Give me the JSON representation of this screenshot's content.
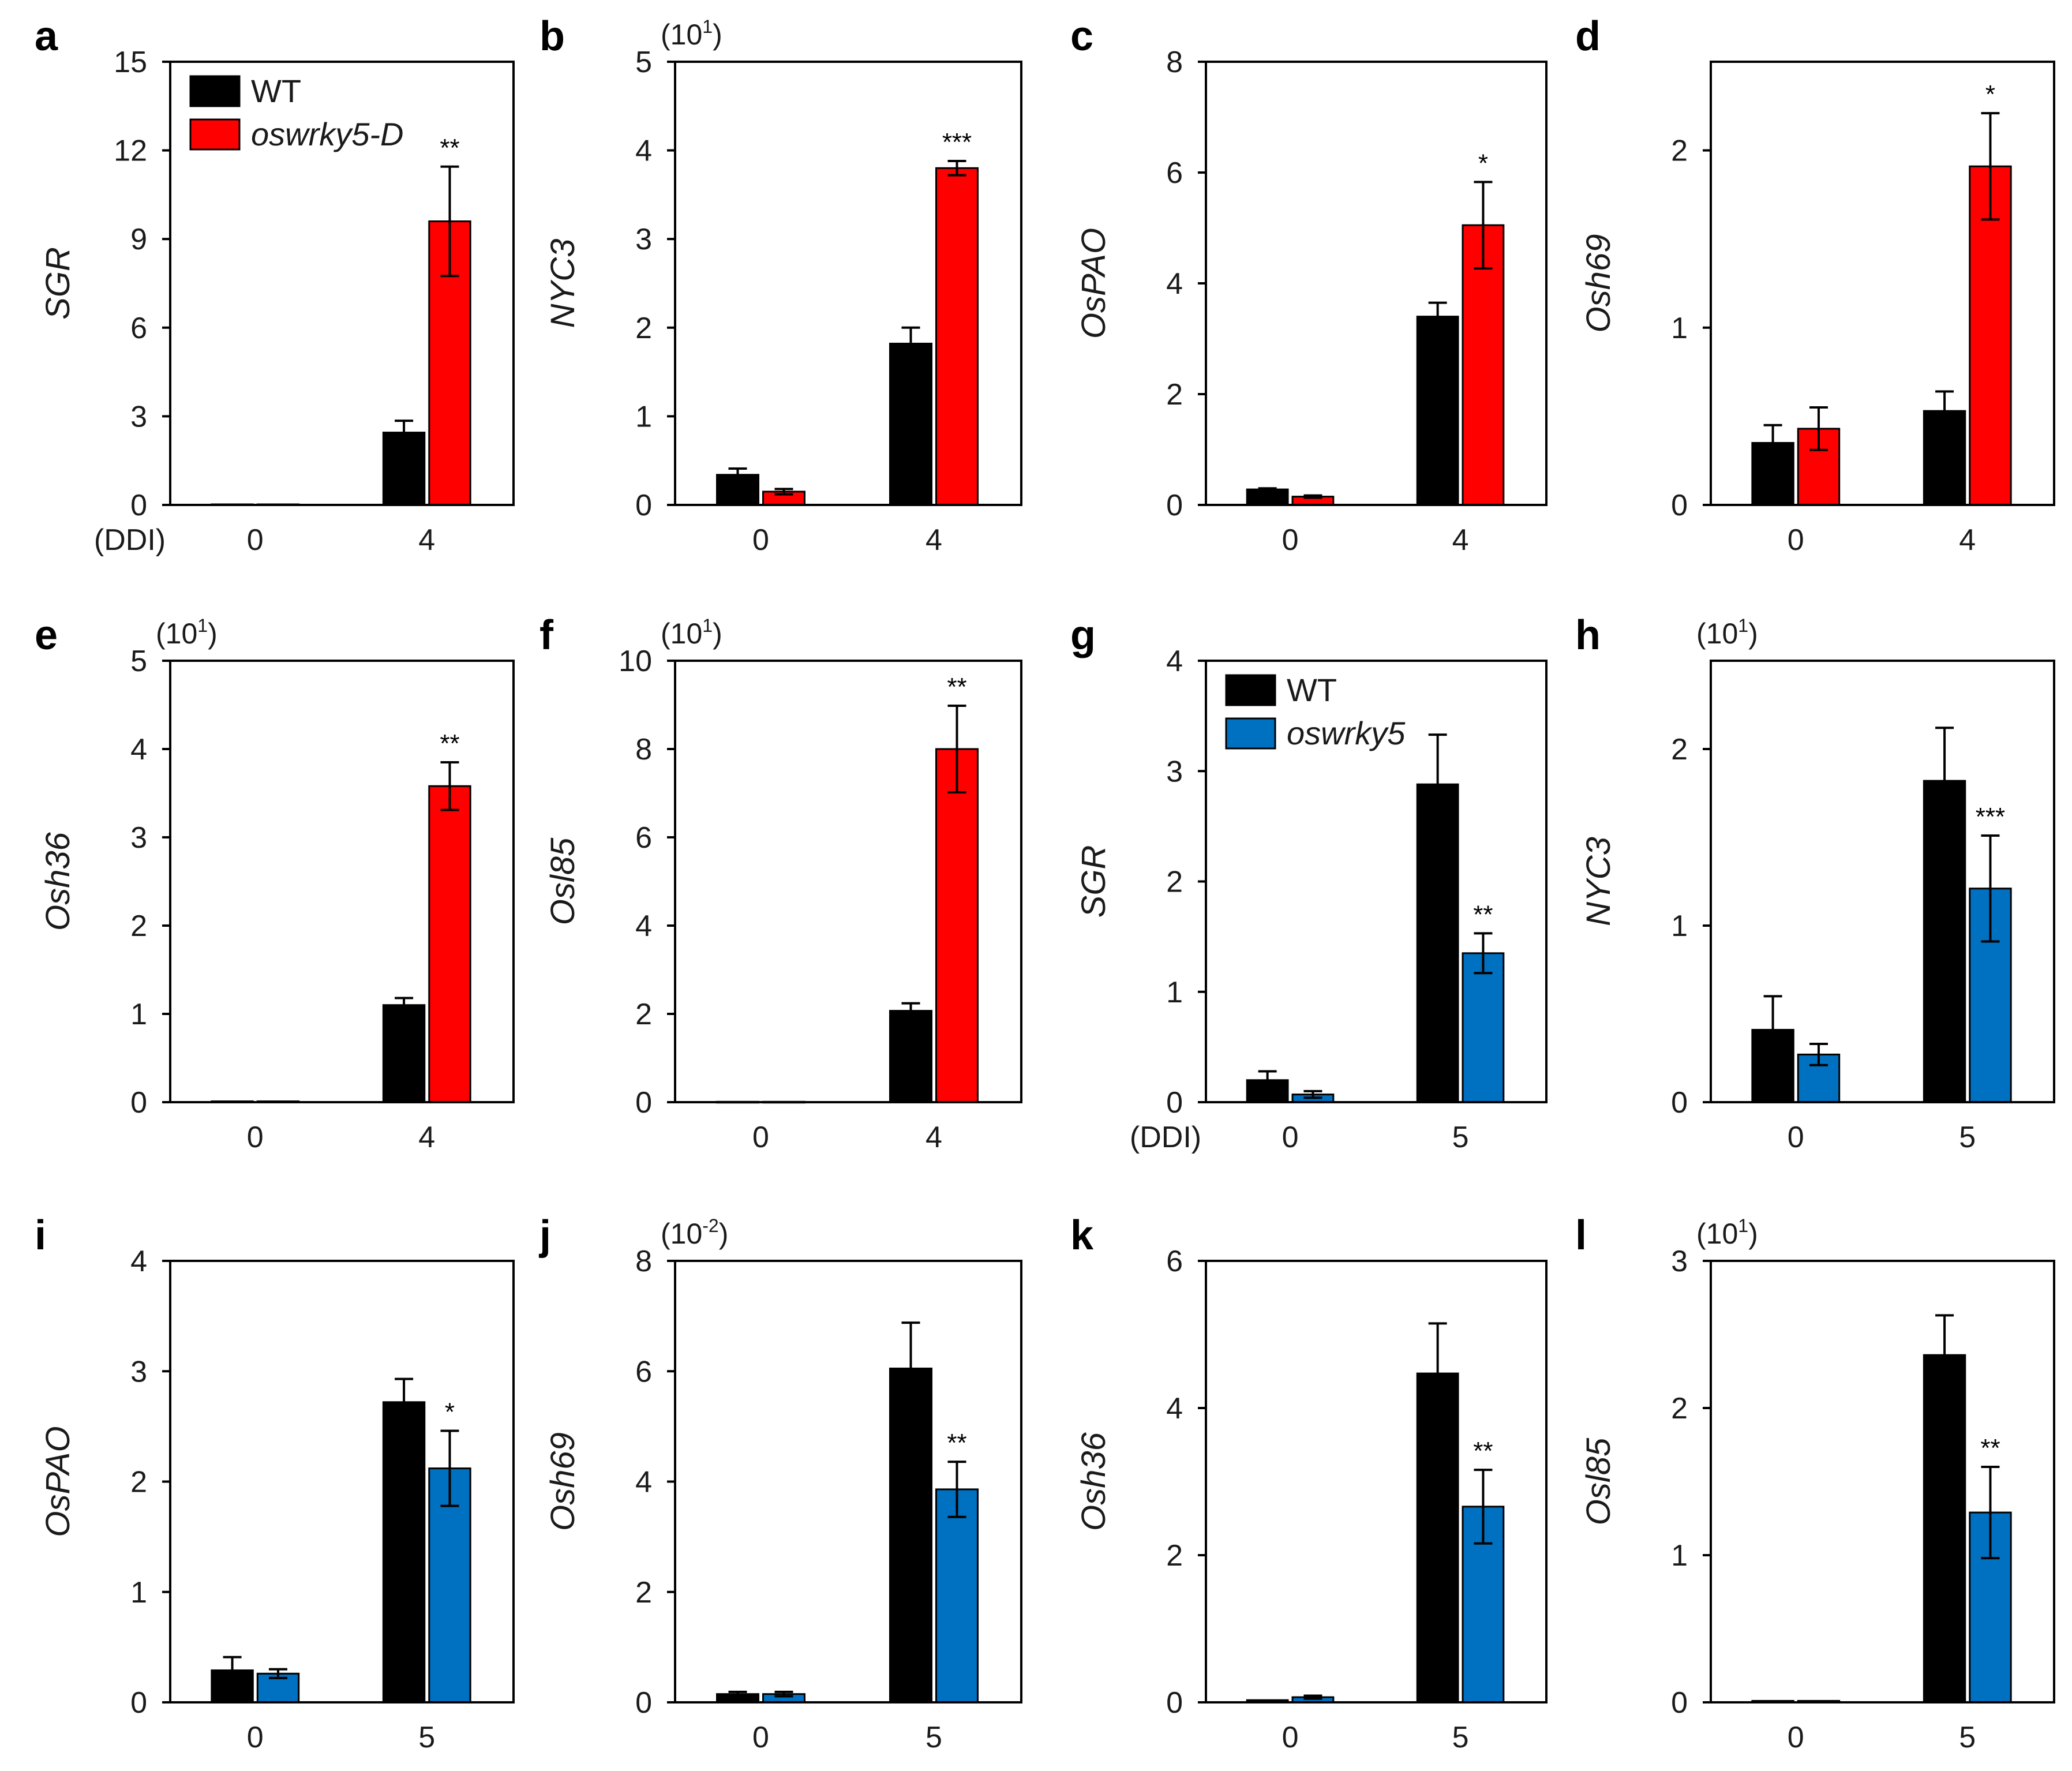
{
  "colors": {
    "wt": "#000000",
    "overexpression": "#ff0000",
    "mutant": "#0070c0"
  },
  "chart_data": [
    {
      "panel": "a",
      "type": "bar",
      "ylabel": "SGR",
      "multiplier": null,
      "ylim": [
        0,
        15
      ],
      "yticks": [
        "0",
        "3",
        "6",
        "9",
        "12",
        "15"
      ],
      "ytick_values": [
        0,
        3,
        6,
        9,
        12,
        15
      ],
      "categories": [
        "0",
        "4"
      ],
      "xprefix": "(DDI)",
      "series": [
        {
          "name": "WT",
          "color": "#000000",
          "values": [
            0.02,
            2.45
          ],
          "errors": [
            0,
            0.4
          ]
        },
        {
          "name": "oswrky5-D",
          "color": "#ff0000",
          "values": [
            0.02,
            9.6
          ],
          "errors": [
            0,
            1.85
          ]
        }
      ],
      "significance": [
        "",
        "**"
      ],
      "legend": {
        "position": "top-left",
        "entries": [
          "WT",
          "oswrky5-D"
        ]
      }
    },
    {
      "panel": "b",
      "type": "bar",
      "ylabel": "NYC3",
      "multiplier": {
        "base": "(10",
        "exp": "1",
        "close": ")"
      },
      "ylim": [
        0,
        5
      ],
      "yticks": [
        "0",
        "1",
        "2",
        "3",
        "4",
        "5"
      ],
      "ytick_values": [
        0,
        1,
        2,
        3,
        4,
        5
      ],
      "categories": [
        "0",
        "4"
      ],
      "xprefix": "",
      "series": [
        {
          "name": "WT",
          "color": "#000000",
          "values": [
            0.34,
            1.82
          ],
          "errors": [
            0.07,
            0.18
          ]
        },
        {
          "name": "oswrky5-D",
          "color": "#ff0000",
          "values": [
            0.15,
            3.8
          ],
          "errors": [
            0.03,
            0.08
          ]
        }
      ],
      "significance": [
        "",
        "***"
      ],
      "legend": null
    },
    {
      "panel": "c",
      "type": "bar",
      "ylabel": "OsPAO",
      "multiplier": null,
      "ylim": [
        0,
        8
      ],
      "yticks": [
        "0",
        "2",
        "4",
        "6",
        "8"
      ],
      "ytick_values": [
        0,
        2,
        4,
        6,
        8
      ],
      "categories": [
        "0",
        "4"
      ],
      "xprefix": "",
      "series": [
        {
          "name": "WT",
          "color": "#000000",
          "values": [
            0.28,
            3.4
          ],
          "errors": [
            0.02,
            0.25
          ]
        },
        {
          "name": "oswrky5-D",
          "color": "#ff0000",
          "values": [
            0.15,
            5.05
          ],
          "errors": [
            0.02,
            0.78
          ]
        }
      ],
      "significance": [
        "",
        "*"
      ],
      "legend": null
    },
    {
      "panel": "d",
      "type": "bar",
      "ylabel": "Osh69",
      "multiplier": null,
      "ylim": [
        0,
        2.5
      ],
      "yticks": [
        "0",
        "1",
        "2"
      ],
      "ytick_values": [
        0,
        1,
        2
      ],
      "categories": [
        "0",
        "4"
      ],
      "xprefix": "",
      "series": [
        {
          "name": "WT",
          "color": "#000000",
          "values": [
            0.35,
            0.53
          ],
          "errors": [
            0.1,
            0.11
          ]
        },
        {
          "name": "oswrky5-D",
          "color": "#ff0000",
          "values": [
            0.43,
            1.91
          ],
          "errors": [
            0.12,
            0.3
          ]
        }
      ],
      "significance": [
        "",
        "*"
      ],
      "legend": null
    },
    {
      "panel": "e",
      "type": "bar",
      "ylabel": "Osh36",
      "multiplier": {
        "base": "(10",
        "exp": "1",
        "close": ")"
      },
      "ylim": [
        0,
        5
      ],
      "yticks": [
        "0",
        "1",
        "2",
        "3",
        "4",
        "5"
      ],
      "ytick_values": [
        0,
        1,
        2,
        3,
        4,
        5
      ],
      "categories": [
        "0",
        "4"
      ],
      "xprefix": "",
      "series": [
        {
          "name": "WT",
          "color": "#000000",
          "values": [
            0.01,
            1.1
          ],
          "errors": [
            0,
            0.08
          ]
        },
        {
          "name": "oswrky5-D",
          "color": "#ff0000",
          "values": [
            0.01,
            3.58
          ],
          "errors": [
            0,
            0.27
          ]
        }
      ],
      "significance": [
        "",
        "**"
      ],
      "legend": null
    },
    {
      "panel": "f",
      "type": "bar",
      "ylabel": "Osl85",
      "multiplier": {
        "base": "(10",
        "exp": "1",
        "close": ")"
      },
      "ylim": [
        0,
        10
      ],
      "yticks": [
        "0",
        "2",
        "4",
        "6",
        "8",
        "10"
      ],
      "ytick_values": [
        0,
        2,
        4,
        6,
        8,
        10
      ],
      "categories": [
        "0",
        "4"
      ],
      "xprefix": "",
      "series": [
        {
          "name": "WT",
          "color": "#000000",
          "values": [
            0.01,
            2.07
          ],
          "errors": [
            0,
            0.17
          ]
        },
        {
          "name": "oswrky5-D",
          "color": "#ff0000",
          "values": [
            0.01,
            8.0
          ],
          "errors": [
            0,
            0.98
          ]
        }
      ],
      "significance": [
        "",
        "**"
      ],
      "legend": null
    },
    {
      "panel": "g",
      "type": "bar",
      "ylabel": "SGR",
      "multiplier": null,
      "ylim": [
        0,
        4
      ],
      "yticks": [
        "0",
        "1",
        "2",
        "3",
        "4"
      ],
      "ytick_values": [
        0,
        1,
        2,
        3,
        4
      ],
      "categories": [
        "0",
        "5"
      ],
      "xprefix": "(DDI)",
      "series": [
        {
          "name": "WT",
          "color": "#000000",
          "values": [
            0.2,
            2.88
          ],
          "errors": [
            0.08,
            0.45
          ]
        },
        {
          "name": "oswrky5",
          "color": "#0070c0",
          "values": [
            0.07,
            1.35
          ],
          "errors": [
            0.03,
            0.18
          ]
        }
      ],
      "significance": [
        "",
        "**"
      ],
      "legend": {
        "position": "top-left",
        "entries": [
          "WT",
          "oswrky5"
        ]
      }
    },
    {
      "panel": "h",
      "type": "bar",
      "ylabel": "NYC3",
      "multiplier": {
        "base": "(10",
        "exp": "1",
        "close": ")"
      },
      "ylim": [
        0,
        2.5
      ],
      "yticks": [
        "0",
        "1",
        "2"
      ],
      "ytick_values": [
        0,
        1,
        2
      ],
      "categories": [
        "0",
        "5"
      ],
      "xprefix": "",
      "series": [
        {
          "name": "WT",
          "color": "#000000",
          "values": [
            0.41,
            1.82
          ],
          "errors": [
            0.19,
            0.3
          ]
        },
        {
          "name": "oswrky5",
          "color": "#0070c0",
          "values": [
            0.27,
            1.21
          ],
          "errors": [
            0.06,
            0.3
          ]
        }
      ],
      "significance": [
        "",
        "***"
      ],
      "legend": null
    },
    {
      "panel": "i",
      "type": "bar",
      "ylabel": "OsPAO",
      "multiplier": null,
      "ylim": [
        0,
        4
      ],
      "yticks": [
        "0",
        "1",
        "2",
        "3",
        "4"
      ],
      "ytick_values": [
        0,
        1,
        2,
        3,
        4
      ],
      "categories": [
        "0",
        "5"
      ],
      "xprefix": "",
      "series": [
        {
          "name": "WT",
          "color": "#000000",
          "values": [
            0.29,
            2.72
          ],
          "errors": [
            0.12,
            0.21
          ]
        },
        {
          "name": "oswrky5",
          "color": "#0070c0",
          "values": [
            0.26,
            2.12
          ],
          "errors": [
            0.04,
            0.34
          ]
        }
      ],
      "significance": [
        "",
        "*"
      ],
      "legend": null
    },
    {
      "panel": "j",
      "type": "bar",
      "ylabel": "Osh69",
      "multiplier": {
        "base": "(10",
        "exp": "-2",
        "close": ")"
      },
      "ylim": [
        0,
        8
      ],
      "yticks": [
        "0",
        "2",
        "4",
        "6",
        "8"
      ],
      "ytick_values": [
        0,
        2,
        4,
        6,
        8
      ],
      "categories": [
        "0",
        "5"
      ],
      "xprefix": "",
      "series": [
        {
          "name": "WT",
          "color": "#000000",
          "values": [
            0.15,
            6.05
          ],
          "errors": [
            0.04,
            0.83
          ]
        },
        {
          "name": "oswrky5",
          "color": "#0070c0",
          "values": [
            0.15,
            3.86
          ],
          "errors": [
            0.04,
            0.5
          ]
        }
      ],
      "significance": [
        "",
        "**"
      ],
      "legend": null
    },
    {
      "panel": "k",
      "type": "bar",
      "ylabel": "Osh36",
      "multiplier": null,
      "ylim": [
        0,
        6
      ],
      "yticks": [
        "0",
        "2",
        "4",
        "6"
      ],
      "ytick_values": [
        0,
        2,
        4,
        6
      ],
      "categories": [
        "0",
        "5"
      ],
      "xprefix": "",
      "series": [
        {
          "name": "WT",
          "color": "#000000",
          "values": [
            0.03,
            4.47
          ],
          "errors": [
            0,
            0.68
          ]
        },
        {
          "name": "oswrky5",
          "color": "#0070c0",
          "values": [
            0.07,
            2.66
          ],
          "errors": [
            0.02,
            0.5
          ]
        }
      ],
      "significance": [
        "",
        "**"
      ],
      "legend": null
    },
    {
      "panel": "l",
      "type": "bar",
      "ylabel": "Osl85",
      "multiplier": {
        "base": "(10",
        "exp": "1",
        "close": ")"
      },
      "ylim": [
        0,
        3
      ],
      "yticks": [
        "0",
        "1",
        "2",
        "3"
      ],
      "ytick_values": [
        0,
        1,
        2,
        3
      ],
      "categories": [
        "0",
        "5"
      ],
      "xprefix": "",
      "series": [
        {
          "name": "WT",
          "color": "#000000",
          "values": [
            0.01,
            2.36
          ],
          "errors": [
            0,
            0.27
          ]
        },
        {
          "name": "oswrky5",
          "color": "#0070c0",
          "values": [
            0.01,
            1.29
          ],
          "errors": [
            0,
            0.31
          ]
        }
      ],
      "significance": [
        "",
        "**"
      ],
      "legend": null
    }
  ]
}
